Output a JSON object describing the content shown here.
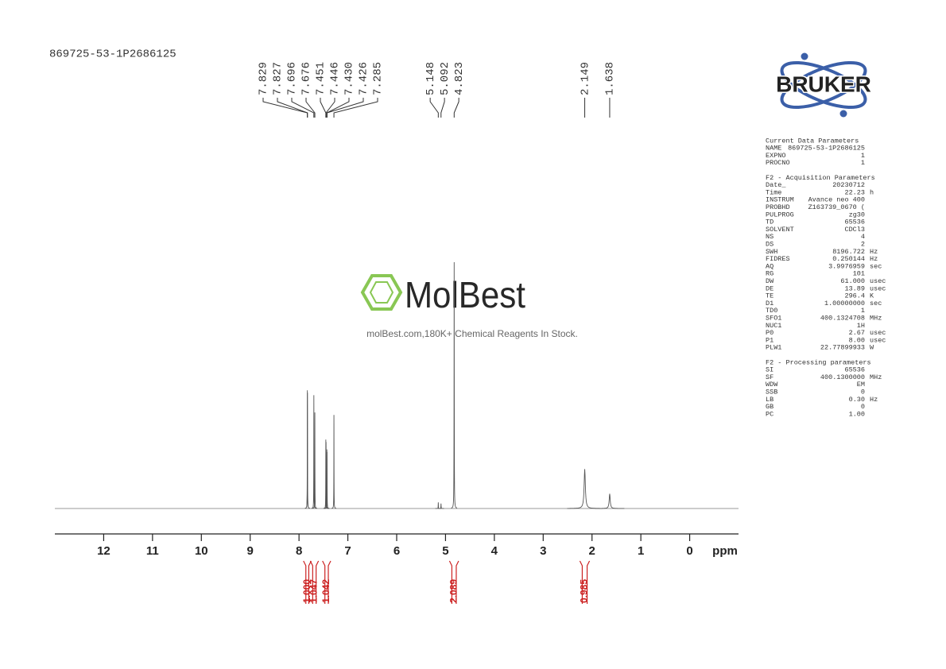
{
  "chart_data": {
    "type": "spectrum",
    "title": "869725-53-1P2686125",
    "x": [
      7.829,
      7.827,
      7.696,
      7.676,
      7.451,
      7.446,
      7.43,
      7.426,
      7.285,
      5.148,
      5.092,
      4.823,
      2.149,
      1.638
    ],
    "x_labels": [
      "7.829",
      "7.827",
      "7.696",
      "7.676",
      "7.451",
      "7.446",
      "7.430",
      "7.426",
      "7.285",
      "5.148",
      "5.092",
      "4.823",
      "2.149",
      "1.638"
    ],
    "values": [
      48,
      47,
      46,
      39,
      28,
      27,
      24,
      23,
      38,
      2.5,
      2,
      100,
      16,
      6
    ],
    "linewidths": [
      0.004,
      0.004,
      0.004,
      0.004,
      0.004,
      0.004,
      0.004,
      0.004,
      0.004,
      0.005,
      0.005,
      0.005,
      0.03,
      0.025
    ],
    "color": "#555555",
    "xlim": [
      13,
      -1
    ],
    "xticks": [
      12,
      11,
      10,
      9,
      8,
      7,
      6,
      5,
      4,
      3,
      2,
      1,
      0
    ],
    "xlabel": "ppm",
    "integrals": {
      "ranges": [
        [
          7.86,
          7.8
        ],
        [
          7.72,
          7.65
        ],
        [
          7.47,
          7.4
        ],
        [
          4.87,
          4.78
        ],
        [
          2.2,
          2.1
        ]
      ],
      "values": [
        1,
        1.047,
        1.042,
        2.089,
        0.985
      ],
      "value_labels": [
        "1.000",
        "1.047",
        "1.042",
        "2.089",
        "0.985"
      ],
      "color": "#cc2222"
    }
  },
  "logo": {
    "text": "BRUKER"
  },
  "watermark": {
    "name": "MolBest",
    "tagline": "molBest.com,180K+ Chemical Reagents In Stock."
  },
  "parameters": {
    "sections": [
      {
        "title": "Current Data Parameters",
        "rows": [
          [
            "NAME",
            "869725-53-1P2686125"
          ],
          [
            "EXPNO",
            "1"
          ],
          [
            "PROCNO",
            "1"
          ]
        ]
      },
      {
        "title": "F2 - Acquisition Parameters",
        "rows": [
          [
            "Date_",
            "20230712"
          ],
          [
            "Time",
            "22.23",
            "h"
          ],
          [
            "INSTRUM",
            "Avance neo 400"
          ],
          [
            "PROBHD",
            "Z163739_0670 ("
          ],
          [
            "PULPROG",
            "zg30"
          ],
          [
            "TD",
            "65536"
          ],
          [
            "SOLVENT",
            "CDCl3"
          ],
          [
            "NS",
            "4"
          ],
          [
            "DS",
            "2"
          ],
          [
            "SWH",
            "8196.722",
            "Hz"
          ],
          [
            "FIDRES",
            "0.250144",
            "Hz"
          ],
          [
            "AQ",
            "3.9976959",
            "sec"
          ],
          [
            "RG",
            "101"
          ],
          [
            "DW",
            "61.000",
            "usec"
          ],
          [
            "DE",
            "13.89",
            "usec"
          ],
          [
            "TE",
            "296.4",
            "K"
          ],
          [
            "D1",
            "1.00000000",
            "sec"
          ],
          [
            "TD0",
            "1"
          ],
          [
            "SFO1",
            "400.1324708",
            "MHz"
          ],
          [
            "NUC1",
            "1H"
          ],
          [
            "P0",
            "2.67",
            "usec"
          ],
          [
            "P1",
            "8.00",
            "usec"
          ],
          [
            "PLW1",
            "22.77899933",
            "W"
          ]
        ]
      },
      {
        "title": "F2 - Processing parameters",
        "rows": [
          [
            "SI",
            "65536"
          ],
          [
            "SF",
            "400.1300000",
            "MHz"
          ],
          [
            "WDW",
            "EM"
          ],
          [
            "SSB",
            "0"
          ],
          [
            "LB",
            "0.30",
            "Hz"
          ],
          [
            "GB",
            "0"
          ],
          [
            "PC",
            "1.00"
          ]
        ]
      }
    ]
  }
}
